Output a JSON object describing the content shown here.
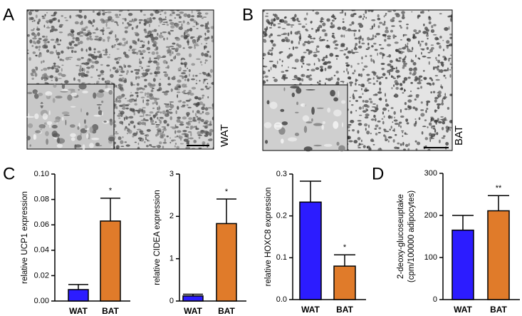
{
  "image_panels": [
    {
      "letter": "A",
      "label": "WAT"
    },
    {
      "letter": "B",
      "label": "BAT"
    }
  ],
  "chart_data": [
    {
      "type": "bar",
      "panel": "C",
      "ylabel": [
        "relative UCP1 expression"
      ],
      "categories": [
        "WAT",
        "BAT"
      ],
      "values": [
        0.009,
        0.063
      ],
      "errors": [
        0.004,
        0.018
      ],
      "colors": [
        "#2c1cff",
        "#e07b2a"
      ],
      "annotations": [
        null,
        "*"
      ],
      "ylim": [
        0,
        0.1
      ],
      "yticks": [
        {
          "value": 0,
          "label": "0.00"
        },
        0.02,
        0.04,
        0.06,
        0.08,
        {
          "value": 0.1,
          "label": "0.10"
        }
      ]
    },
    {
      "type": "bar",
      "ylabel": [
        "relative CIDEA expression"
      ],
      "categories": [
        "WAT",
        "BAT"
      ],
      "values": [
        0.12,
        1.83
      ],
      "errors": [
        0.04,
        0.58
      ],
      "colors": [
        "#2c1cff",
        "#e07b2a"
      ],
      "annotations": [
        null,
        "*"
      ],
      "ylim": [
        0,
        3
      ],
      "yticks": [
        0,
        1,
        2,
        3
      ]
    },
    {
      "type": "bar",
      "ylabel": [
        "relative HOXC8 expression"
      ],
      "categories": [
        "WAT",
        "BAT"
      ],
      "values": [
        0.233,
        0.08
      ],
      "errors": [
        0.05,
        0.027
      ],
      "colors": [
        "#2c1cff",
        "#e07b2a"
      ],
      "annotations": [
        null,
        "*"
      ],
      "ylim": [
        0,
        0.3
      ],
      "yticks": [
        {
          "value": 0,
          "label": "0.0"
        },
        0.1,
        0.2,
        0.3
      ]
    },
    {
      "type": "bar",
      "panel": "D",
      "ylabel": [
        "2-deoxy-glucoseuptake",
        "(cpm/100000 adipocytes)"
      ],
      "categories": [
        "WAT",
        "BAT"
      ],
      "values": [
        165,
        211
      ],
      "errors": [
        35,
        36
      ],
      "colors": [
        "#2c1cff",
        "#e07b2a"
      ],
      "annotations": [
        null,
        "**"
      ],
      "ylim": [
        0,
        300
      ],
      "yticks": [
        0,
        100,
        200,
        300
      ]
    }
  ]
}
